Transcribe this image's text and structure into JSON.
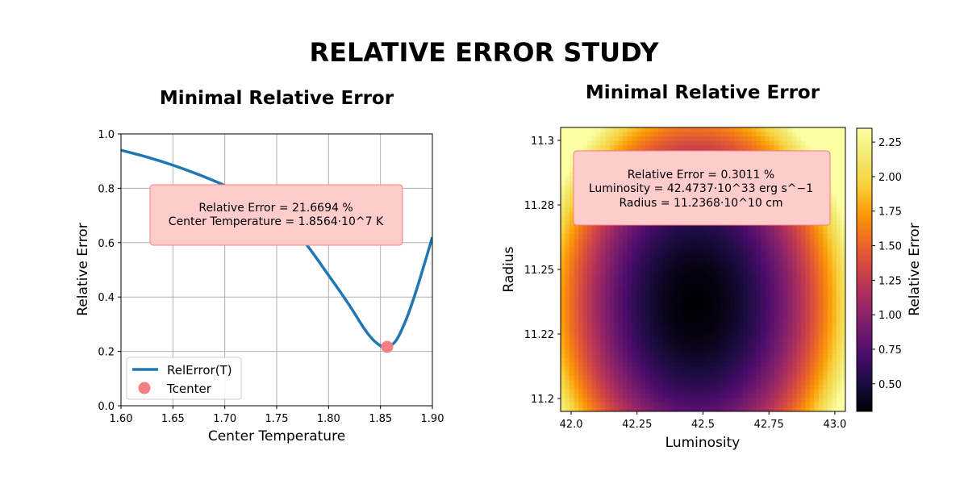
{
  "title": "RELATIVE ERROR STUDY",
  "chart_data": [
    {
      "type": "line",
      "title": "Minimal Relative Error",
      "xlabel": "Center Temperature",
      "ylabel": "Relative Error",
      "xlim": [
        1.6,
        1.9
      ],
      "ylim": [
        0.0,
        1.0
      ],
      "xticks": [
        "1.60",
        "1.65",
        "1.70",
        "1.75",
        "1.80",
        "1.85",
        "1.90"
      ],
      "yticks": [
        "0.0",
        "0.2",
        "0.4",
        "0.6",
        "0.8",
        "1.0"
      ],
      "grid": true,
      "legend": "lower-left",
      "series": [
        {
          "name": "RelError(T)",
          "color": "#1f77b4",
          "x": [
            1.6,
            1.625,
            1.65,
            1.675,
            1.7,
            1.725,
            1.75,
            1.775,
            1.8,
            1.82,
            1.835,
            1.845,
            1.855,
            1.865,
            1.875,
            1.885,
            1.9
          ],
          "y": [
            0.94,
            0.915,
            0.885,
            0.85,
            0.81,
            0.76,
            0.7,
            0.61,
            0.48,
            0.37,
            0.28,
            0.235,
            0.215,
            0.24,
            0.32,
            0.43,
            0.62
          ]
        },
        {
          "name": "Tcenter",
          "type": "scatter",
          "color": "#f28080",
          "x": [
            1.8564
          ],
          "y": [
            0.2167
          ]
        }
      ],
      "annotation": {
        "lines": [
          "Relative Error = 21.6694 %",
          "Center Temperature = 1.8564·10^7 K"
        ],
        "facecolor": "#ffcccc",
        "edgecolor": "#f28080"
      }
    },
    {
      "type": "heatmap",
      "title": "Minimal Relative Error",
      "xlabel": "Luminosity",
      "ylabel": "Radius",
      "xlim": [
        41.96,
        43.04
      ],
      "ylim": [
        11.195,
        11.305
      ],
      "xticks": [
        {
          "value": 42.0,
          "label": "42.0"
        },
        {
          "value": 42.25,
          "label": "42.25"
        },
        {
          "value": 42.5,
          "label": "42.5"
        },
        {
          "value": 42.75,
          "label": "42.75"
        },
        {
          "value": 43.0,
          "label": "43.0"
        }
      ],
      "yticks": [
        {
          "value": 11.2,
          "label": "11.2"
        },
        {
          "value": 11.225,
          "label": "11.22"
        },
        {
          "value": 11.25,
          "label": "11.25"
        },
        {
          "value": 11.275,
          "label": "11.28"
        },
        {
          "value": 11.3,
          "label": "11.3"
        }
      ],
      "minimum": {
        "x": 42.4737,
        "y": 11.2368,
        "value": 0.3011
      },
      "colormap": "inferno",
      "colorbar": {
        "label": "Relative Error",
        "range": [
          0.3,
          2.35
        ],
        "ticks": [
          "0.50",
          "0.75",
          "1.00",
          "1.25",
          "1.50",
          "1.75",
          "2.00",
          "2.25"
        ]
      },
      "annotation": {
        "lines": [
          "Relative Error = 0.3011 %",
          "Luminosity = 42.4737·10^33 erg s^−1",
          "Radius = 11.2368·10^10 cm"
        ],
        "facecolor": "#ffcccc",
        "edgecolor": "#f28080"
      }
    }
  ]
}
